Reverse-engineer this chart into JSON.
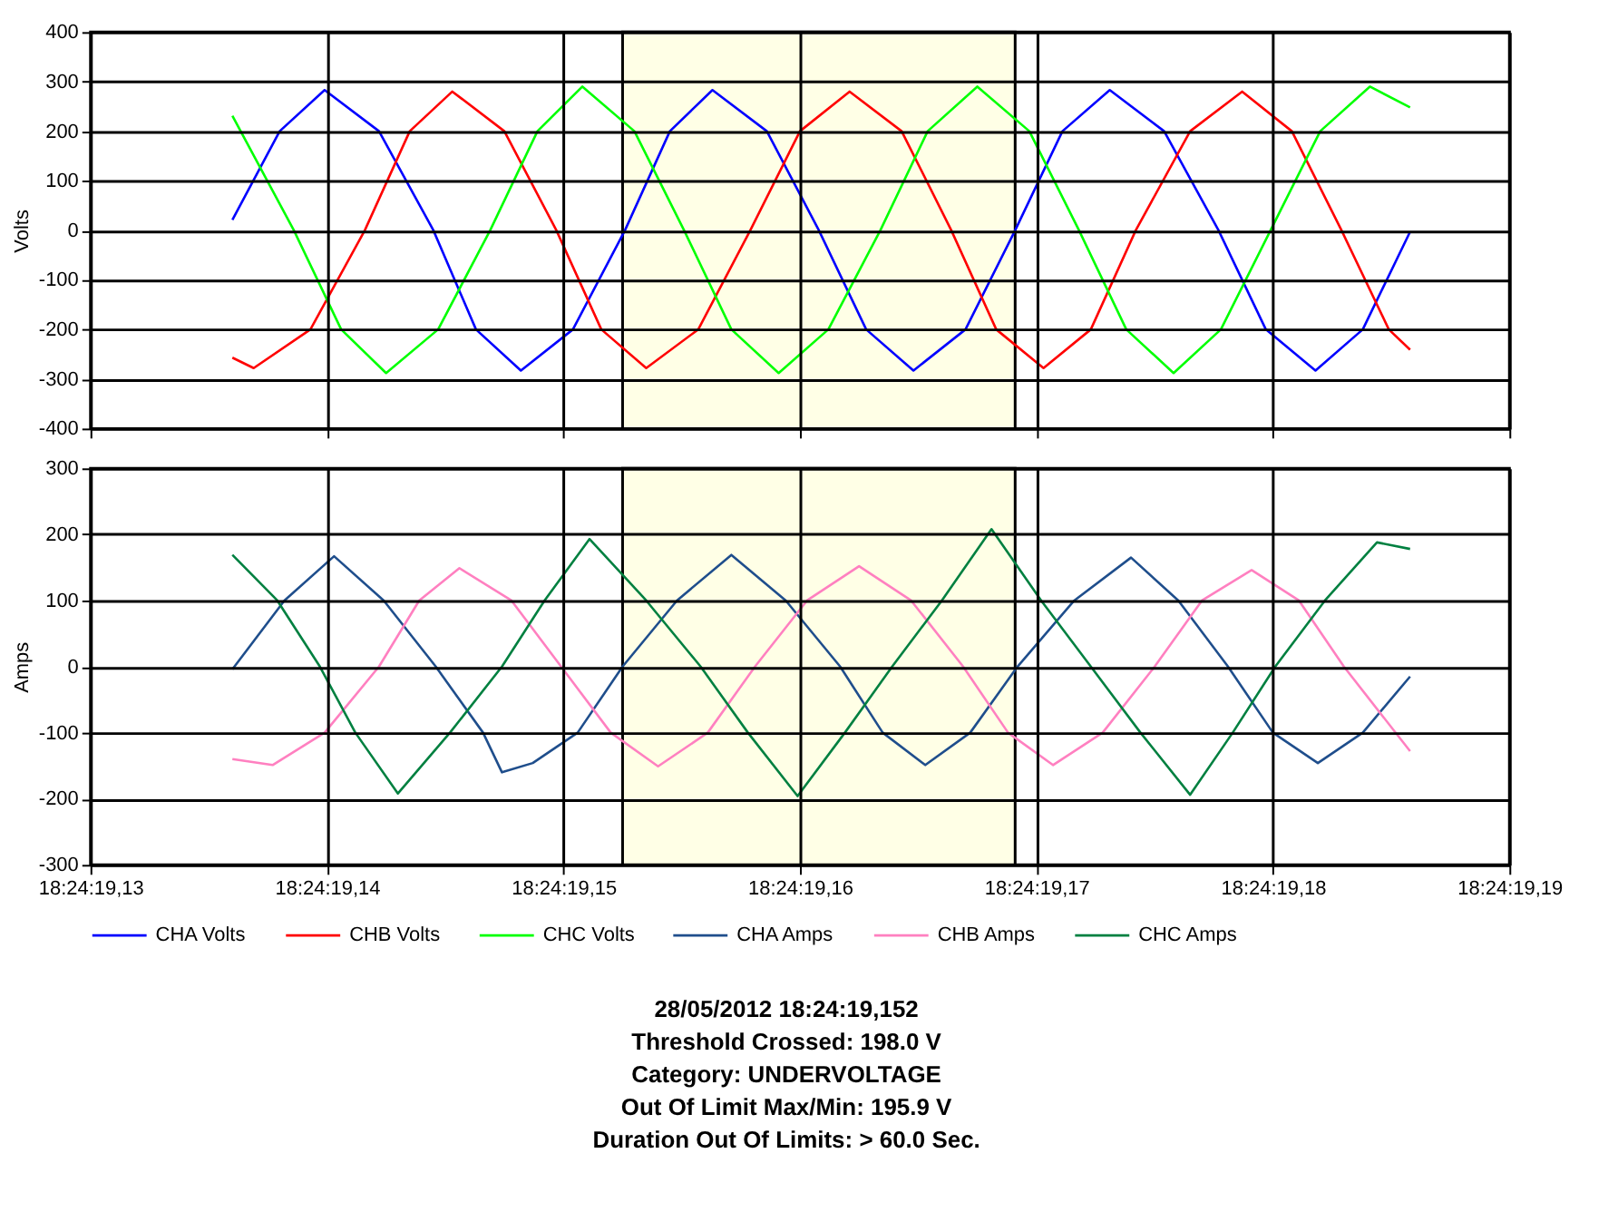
{
  "chart_data": [
    {
      "type": "line",
      "ylabel": "Volts",
      "xlim": [
        "2012-05-28T18:24:19.13",
        "2012-05-28T18:24:19.19"
      ],
      "xticks": [
        {
          "value": "2012-05-28T18:24:19.13",
          "label": null
        },
        {
          "value": "2012-05-28T18:24:19.14",
          "label": null
        },
        {
          "value": "2012-05-28T18:24:19.15",
          "label": null
        },
        {
          "value": "2012-05-28T18:24:19.16",
          "label": null
        },
        {
          "value": "2012-05-28T18:24:19.17",
          "label": null
        },
        {
          "value": "2012-05-28T18:24:19.18",
          "label": null
        },
        {
          "value": "2012-05-28T18:24:19.19",
          "label": null
        }
      ],
      "ylim": [
        -400,
        400
      ],
      "yticks": [
        -400,
        -300,
        -200,
        -100,
        0,
        100,
        200,
        300,
        400
      ],
      "tick_labels": "y",
      "grid": true,
      "legend": "bottom",
      "bands": [
        {
          "axis": "x",
          "from": "2012-05-28T18:24:19.1525",
          "to": "2012-05-28T18:24:19.1691",
          "color": "#ffffe6"
        }
      ],
      "series": [
        {
          "name": "CHA Volts",
          "color": "#0000ff",
          "x": [
            "2012-05-28T18:24:19.1360",
            "2012-05-28T18:24:19.1380",
            "2012-05-28T18:24:19.1399",
            "2012-05-28T18:24:19.1422",
            "2012-05-28T18:24:19.1445",
            "2012-05-28T18:24:19.1463",
            "2012-05-28T18:24:19.1482",
            "2012-05-28T18:24:19.1504",
            "2012-05-28T18:24:19.1526",
            "2012-05-28T18:24:19.1545",
            "2012-05-28T18:24:19.1563",
            "2012-05-28T18:24:19.1586",
            "2012-05-28T18:24:19.1608",
            "2012-05-28T18:24:19.1628",
            "2012-05-28T18:24:19.1648",
            "2012-05-28T18:24:19.1670",
            "2012-05-28T18:24:19.1691",
            "2012-05-28T18:24:19.1711",
            "2012-05-28T18:24:19.1731",
            "2012-05-28T18:24:19.1754",
            "2012-05-28T18:24:19.1777",
            "2012-05-28T18:24:19.1797",
            "2012-05-28T18:24:19.1818",
            "2012-05-28T18:24:19.1838",
            "2012-05-28T18:24:19.1858"
          ],
          "values": [
            21,
            200,
            283,
            200,
            0,
            -200,
            -283,
            -200,
            0,
            200,
            283,
            200,
            0,
            -200,
            -283,
            -200,
            0,
            200,
            283,
            200,
            0,
            -200,
            -283,
            -200,
            -3
          ]
        },
        {
          "name": "CHB Volts",
          "color": "#ff0000",
          "x": [
            "2012-05-28T18:24:19.1360",
            "2012-05-28T18:24:19.1369",
            "2012-05-28T18:24:19.1393",
            "2012-05-28T18:24:19.1416",
            "2012-05-28T18:24:19.1435",
            "2012-05-28T18:24:19.1453",
            "2012-05-28T18:24:19.1475",
            "2012-05-28T18:24:19.1497",
            "2012-05-28T18:24:19.1516",
            "2012-05-28T18:24:19.1535",
            "2012-05-28T18:24:19.1557",
            "2012-05-28T18:24:19.1579",
            "2012-05-28T18:24:19.1600",
            "2012-05-28T18:24:19.1621",
            "2012-05-28T18:24:19.1643",
            "2012-05-28T18:24:19.1664",
            "2012-05-28T18:24:19.1683",
            "2012-05-28T18:24:19.1703",
            "2012-05-28T18:24:19.1723",
            "2012-05-28T18:24:19.1742",
            "2012-05-28T18:24:19.1765",
            "2012-05-28T18:24:19.1787",
            "2012-05-28T18:24:19.1808",
            "2012-05-28T18:24:19.1829",
            "2012-05-28T18:24:19.1849",
            "2012-05-28T18:24:19.1858"
          ],
          "values": [
            -257,
            -278,
            -200,
            0,
            200,
            280,
            200,
            0,
            -200,
            -278,
            -200,
            0,
            200,
            280,
            200,
            0,
            -200,
            -278,
            -200,
            0,
            200,
            280,
            200,
            0,
            -200,
            -241
          ]
        },
        {
          "name": "CHC Volts",
          "color": "#00ff00",
          "x": [
            "2012-05-28T18:24:19.1360",
            "2012-05-28T18:24:19.1386",
            "2012-05-28T18:24:19.1406",
            "2012-05-28T18:24:19.1425",
            "2012-05-28T18:24:19.1447",
            "2012-05-28T18:24:19.1469",
            "2012-05-28T18:24:19.1489",
            "2012-05-28T18:24:19.1508",
            "2012-05-28T18:24:19.1530",
            "2012-05-28T18:24:19.1551",
            "2012-05-28T18:24:19.1571",
            "2012-05-28T18:24:19.1591",
            "2012-05-28T18:24:19.1612",
            "2012-05-28T18:24:19.1634",
            "2012-05-28T18:24:19.1654",
            "2012-05-28T18:24:19.1675",
            "2012-05-28T18:24:19.1697",
            "2012-05-28T18:24:19.1718",
            "2012-05-28T18:24:19.1738",
            "2012-05-28T18:24:19.1758",
            "2012-05-28T18:24:19.1778",
            "2012-05-28T18:24:19.1799",
            "2012-05-28T18:24:19.1820",
            "2012-05-28T18:24:19.1841",
            "2012-05-28T18:24:19.1858"
          ],
          "values": [
            231,
            0,
            -200,
            -288,
            -200,
            0,
            200,
            290,
            200,
            0,
            -200,
            -288,
            -200,
            0,
            200,
            290,
            200,
            0,
            -200,
            -288,
            -200,
            0,
            200,
            290,
            248
          ]
        }
      ]
    },
    {
      "type": "line",
      "ylabel": "Amps",
      "xlim": [
        "2012-05-28T18:24:19.13",
        "2012-05-28T18:24:19.19"
      ],
      "xticks": [
        {
          "value": "2012-05-28T18:24:19.13",
          "label": "18:24:19,13"
        },
        {
          "value": "2012-05-28T18:24:19.14",
          "label": "18:24:19,14"
        },
        {
          "value": "2012-05-28T18:24:19.15",
          "label": "18:24:19,15"
        },
        {
          "value": "2012-05-28T18:24:19.16",
          "label": "18:24:19,16"
        },
        {
          "value": "2012-05-28T18:24:19.17",
          "label": "18:24:19,17"
        },
        {
          "value": "2012-05-28T18:24:19.18",
          "label": "18:24:19,18"
        },
        {
          "value": "2012-05-28T18:24:19.19",
          "label": "18:24:19,19"
        }
      ],
      "ylim": [
        -300,
        300
      ],
      "yticks": [
        -300,
        -200,
        -100,
        0,
        100,
        200,
        300
      ],
      "grid": true,
      "legend": "bottom",
      "bands": [
        {
          "axis": "x",
          "from": "2012-05-28T18:24:19.1525",
          "to": "2012-05-28T18:24:19.1691",
          "color": "#ffffe6"
        }
      ],
      "series": [
        {
          "name": "CHA Amps",
          "color": "#1f4e8c",
          "x": [
            "2012-05-28T18:24:19.1360",
            "2012-05-28T18:24:19.1382",
            "2012-05-28T18:24:19.1403",
            "2012-05-28T18:24:19.1424",
            "2012-05-28T18:24:19.1446",
            "2012-05-28T18:24:19.1466",
            "2012-05-28T18:24:19.1474",
            "2012-05-28T18:24:19.1487",
            "2012-05-28T18:24:19.1506",
            "2012-05-28T18:24:19.1525",
            "2012-05-28T18:24:19.1548",
            "2012-05-28T18:24:19.1571",
            "2012-05-28T18:24:19.1594",
            "2012-05-28T18:24:19.1617",
            "2012-05-28T18:24:19.1635",
            "2012-05-28T18:24:19.1653",
            "2012-05-28T18:24:19.1672",
            "2012-05-28T18:24:19.1692",
            "2012-05-28T18:24:19.1716",
            "2012-05-28T18:24:19.1740",
            "2012-05-28T18:24:19.1760",
            "2012-05-28T18:24:19.1781",
            "2012-05-28T18:24:19.1800",
            "2012-05-28T18:24:19.1819",
            "2012-05-28T18:24:19.1838",
            "2012-05-28T18:24:19.1858"
          ],
          "values": [
            -4,
            100,
            167,
            100,
            0,
            -100,
            -160,
            -146,
            -100,
            0,
            100,
            169,
            100,
            0,
            -100,
            -149,
            -100,
            0,
            100,
            165,
            100,
            0,
            -100,
            -146,
            -100,
            -15
          ]
        },
        {
          "name": "CHB Amps",
          "color": "#ff80c0",
          "x": [
            "2012-05-28T18:24:19.1360",
            "2012-05-28T18:24:19.1377",
            "2012-05-28T18:24:19.1399",
            "2012-05-28T18:24:19.1422",
            "2012-05-28T18:24:19.1439",
            "2012-05-28T18:24:19.1456",
            "2012-05-28T18:24:19.1478",
            "2012-05-28T18:24:19.1499",
            "2012-05-28T18:24:19.1520",
            "2012-05-28T18:24:19.1540",
            "2012-05-28T18:24:19.1561",
            "2012-05-28T18:24:19.1581",
            "2012-05-28T18:24:19.1603",
            "2012-05-28T18:24:19.1625",
            "2012-05-28T18:24:19.1647",
            "2012-05-28T18:24:19.1669",
            "2012-05-28T18:24:19.1688",
            "2012-05-28T18:24:19.1707",
            "2012-05-28T18:24:19.1728",
            "2012-05-28T18:24:19.1750",
            "2012-05-28T18:24:19.1770",
            "2012-05-28T18:24:19.1791",
            "2012-05-28T18:24:19.1811",
            "2012-05-28T18:24:19.1830",
            "2012-05-28T18:24:19.1858"
          ],
          "values": [
            -140,
            -149,
            -100,
            0,
            100,
            149,
            100,
            0,
            -100,
            -151,
            -100,
            0,
            100,
            152,
            100,
            0,
            -100,
            -149,
            -100,
            0,
            100,
            146,
            100,
            0,
            -128
          ]
        },
        {
          "name": "CHC Amps",
          "color": "#008040",
          "x": [
            "2012-05-28T18:24:19.1360",
            "2012-05-28T18:24:19.1379",
            "2012-05-28T18:24:19.1397",
            "2012-05-28T18:24:19.1412",
            "2012-05-28T18:24:19.1430",
            "2012-05-28T18:24:19.1452",
            "2012-05-28T18:24:19.1474",
            "2012-05-28T18:24:19.1492",
            "2012-05-28T18:24:19.1511",
            "2012-05-28T18:24:19.1535",
            "2012-05-28T18:24:19.1558",
            "2012-05-28T18:24:19.1578",
            "2012-05-28T18:24:19.1599",
            "2012-05-28T18:24:19.1619",
            "2012-05-28T18:24:19.1639",
            "2012-05-28T18:24:19.1660",
            "2012-05-28T18:24:19.1681",
            "2012-05-28T18:24:19.1702",
            "2012-05-28T18:24:19.1723",
            "2012-05-28T18:24:19.1744",
            "2012-05-28T18:24:19.1765",
            "2012-05-28T18:24:19.1783",
            "2012-05-28T18:24:19.1801",
            "2012-05-28T18:24:19.1822",
            "2012-05-28T18:24:19.1844",
            "2012-05-28T18:24:19.1858"
          ],
          "values": [
            169,
            100,
            0,
            -100,
            -192,
            -100,
            0,
            100,
            193,
            100,
            0,
            -100,
            -196,
            -100,
            0,
            100,
            208,
            100,
            0,
            -100,
            -194,
            -100,
            0,
            100,
            188,
            178
          ]
        }
      ],
      "annotations": [
        "28/05/2012 18:24:19,152",
        "Threshold Crossed: 198.0   V",
        "Category: UNDERVOLTAGE",
        "Out Of Limit Max/Min: 195.9   V",
        "Duration Out Of Limits: > 60.0 Sec."
      ]
    }
  ]
}
